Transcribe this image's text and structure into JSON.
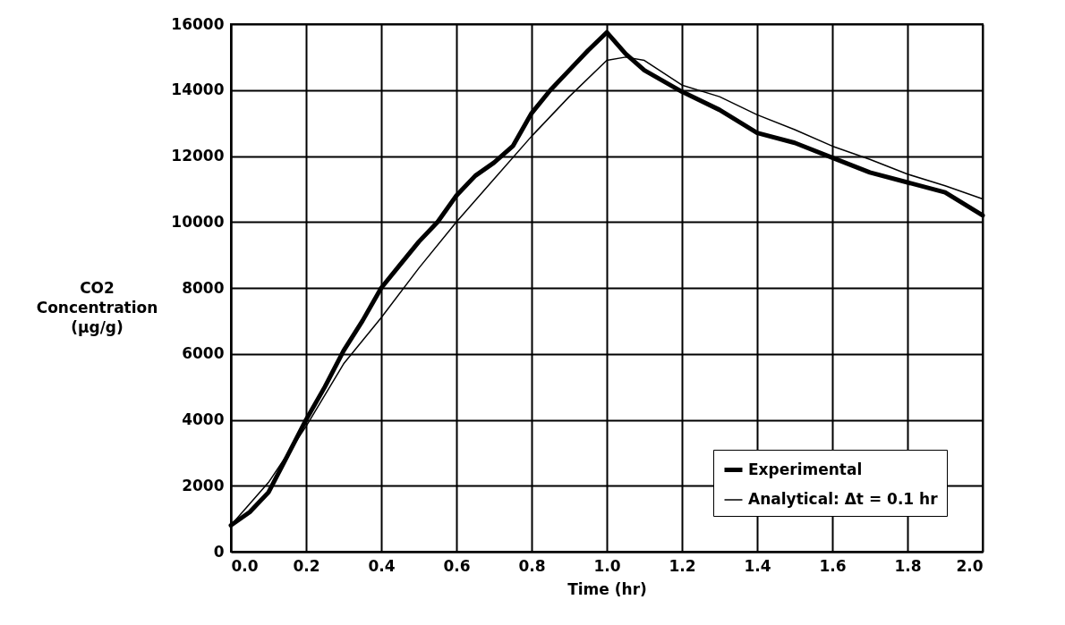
{
  "chart_data": {
    "type": "line",
    "xlabel": "Time (hr)",
    "ylabel": "CO2 Concentration (µg/g)",
    "xlim": [
      0,
      2
    ],
    "xticks": [
      {
        "value": 0,
        "label": "0.0"
      },
      {
        "value": 0.2,
        "label": "0.2"
      },
      {
        "value": 0.4,
        "label": "0.4"
      },
      {
        "value": 0.6,
        "label": "0.6"
      },
      {
        "value": 0.8,
        "label": "0.8"
      },
      {
        "value": 1,
        "label": "1.0"
      },
      {
        "value": 1.2,
        "label": "1.2"
      },
      {
        "value": 1.4,
        "label": "1.4"
      },
      {
        "value": 1.6,
        "label": "1.6"
      },
      {
        "value": 1.8,
        "label": "1.8"
      },
      {
        "value": 2,
        "label": "2.0"
      }
    ],
    "ylim": [
      0,
      16000
    ],
    "yticks": [
      0,
      2000,
      4000,
      6000,
      8000,
      10000,
      12000,
      14000,
      16000
    ],
    "grid": true,
    "legend": "bottom right",
    "marker": "none",
    "line_style": "solid",
    "series": [
      {
        "name": "Experimental",
        "color": "#000000",
        "x": [
          0,
          0.05,
          0.1,
          0.15,
          0.2,
          0.25,
          0.3,
          0.35,
          0.4,
          0.45,
          0.5,
          0.55,
          0.6,
          0.65,
          0.7,
          0.75,
          0.8,
          0.85,
          0.9,
          0.95,
          1.0,
          1.05,
          1.1,
          1.2,
          1.3,
          1.4,
          1.5,
          1.6,
          1.7,
          1.8,
          1.9,
          2.0
        ],
        "values": [
          800,
          1200,
          1800,
          2900,
          4000,
          5000,
          6100,
          7000,
          8000,
          8700,
          9400,
          10000,
          10800,
          11400,
          11800,
          12300,
          13300,
          14000,
          14600,
          15200,
          15750,
          15100,
          14600,
          13950,
          13400,
          12700,
          12400,
          11950,
          11500,
          11200,
          10900,
          10200
        ]
      },
      {
        "name": "Analytical: Δt = 0.1 hr",
        "color": "#000000",
        "x": [
          0,
          0.1,
          0.2,
          0.3,
          0.4,
          0.5,
          0.6,
          0.7,
          0.8,
          0.9,
          1.0,
          1.05,
          1.1,
          1.2,
          1.3,
          1.4,
          1.5,
          1.6,
          1.7,
          1.8,
          1.9,
          2.0
        ],
        "values": [
          800,
          2100,
          3800,
          5700,
          7100,
          8600,
          10000,
          11300,
          12600,
          13800,
          14900,
          15000,
          14900,
          14150,
          13800,
          13250,
          12800,
          12300,
          11900,
          11450,
          11100,
          10700
        ]
      }
    ]
  }
}
